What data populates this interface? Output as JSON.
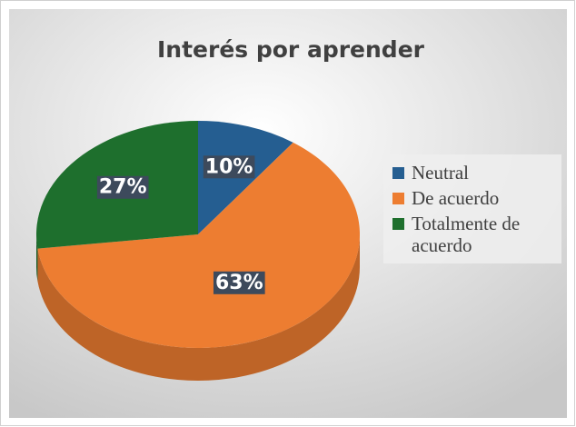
{
  "chart_data": {
    "type": "pie",
    "title": "Interés por aprender",
    "categories": [
      "Neutral",
      "De acuerdo",
      "Totalmente de acuerdo"
    ],
    "values": [
      10,
      63,
      27
    ],
    "value_labels": [
      "10%",
      "63%",
      "27%"
    ],
    "colors": [
      "#255e91",
      "#ed7d31",
      "#1e6f2d"
    ],
    "legend": "right"
  }
}
